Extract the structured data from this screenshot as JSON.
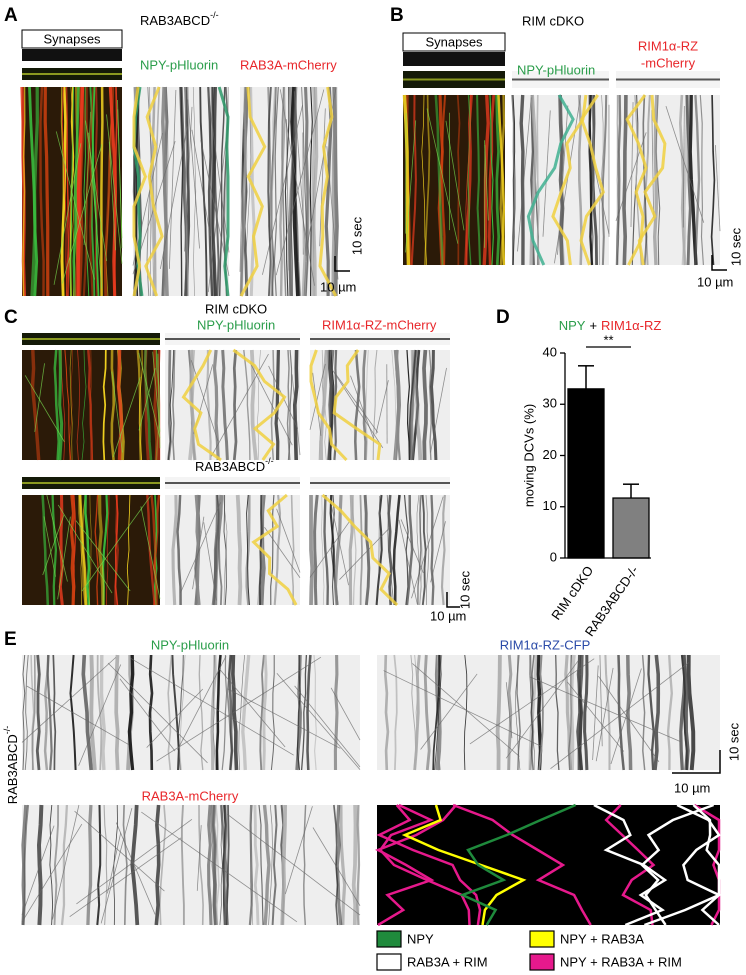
{
  "panels": {
    "A": {
      "label": "A",
      "genotype": "RAB3ABCD",
      "genotype_sup": "-/-",
      "synapses": "Synapses",
      "channel_1": "NPY-pHluorin",
      "channel_2": "RAB3A-mCherry",
      "scale_time": "10 sec",
      "scale_space": "10 µm"
    },
    "B": {
      "label": "B",
      "genotype": "RIM cDKO",
      "synapses": "Synapses",
      "channel_1": "NPY-pHluorin",
      "channel_2_line_1": "RIM1α-RZ",
      "channel_2_line_2": "-mCherry",
      "scale_time": "10 sec",
      "scale_space": "10 µm"
    },
    "C": {
      "label": "C",
      "genotype_1": "RIM cDKO",
      "channel_1": "NPY-pHluorin",
      "channel_2": "RIM1α-RZ-mCherry",
      "genotype_2": "RAB3ABCD",
      "genotype_2_sup": "-/-",
      "scale_time": "10 sec",
      "scale_space": "10 µm"
    },
    "D": {
      "label": "D"
    },
    "E": {
      "label": "E",
      "channel_1": "NPY-pHluorin",
      "channel_2": "RIM1α-RZ-CFP",
      "channel_3": "RAB3A-mCherry",
      "genotype": "RAB3ABCD",
      "genotype_sup": "-/-",
      "scale_time": "10 sec",
      "scale_space": "10 µm",
      "legend": [
        {
          "label": "NPY",
          "color": "#1f8a3c"
        },
        {
          "label": "NPY + RAB3A",
          "color": "#ffff00"
        },
        {
          "label": "RAB3A + RIM",
          "color": "#ffffff"
        },
        {
          "label": "NPY + RAB3A + RIM",
          "color": "#e6198c"
        }
      ]
    }
  },
  "chart_data": {
    "type": "bar",
    "title_parts": [
      "NPY",
      "+",
      "RIM1α-RZ"
    ],
    "title_colors": [
      "#2a9d4a",
      "#000000",
      "#e8262a"
    ],
    "ylabel": "moving DCVs (%)",
    "categories": [
      "RIM cDKO",
      "RAB3ABCD-/-"
    ],
    "values": [
      33,
      11.7
    ],
    "errors": [
      4.5,
      2.7
    ],
    "colors": [
      "#000000",
      "#808080"
    ],
    "ylim": [
      0,
      40
    ],
    "yticks": [
      0,
      10,
      20,
      30,
      40
    ],
    "annotation": "**"
  }
}
